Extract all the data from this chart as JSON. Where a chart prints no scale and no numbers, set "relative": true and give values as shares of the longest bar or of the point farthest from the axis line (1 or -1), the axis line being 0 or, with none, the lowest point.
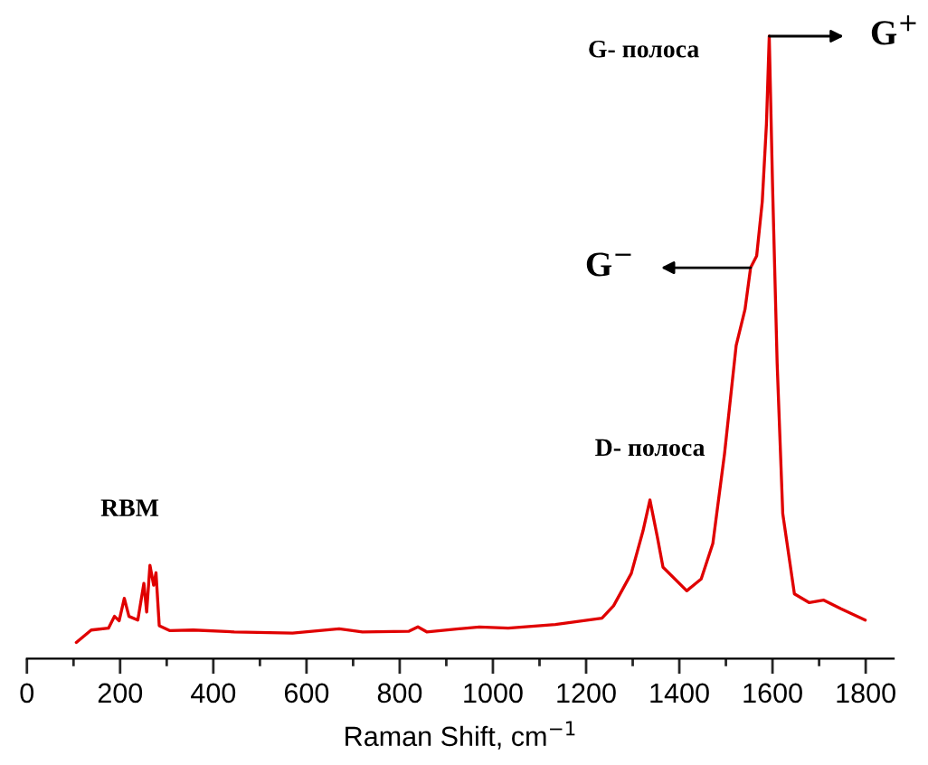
{
  "chart_data": {
    "type": "line",
    "relative": true,
    "xlabel": "Raman Shift, cm$^{−1}$",
    "xlim": [
      0,
      1860
    ],
    "xticks": [
      0,
      200,
      400,
      600,
      800,
      1000,
      1200,
      1400,
      1600,
      1800
    ],
    "grid": false,
    "legend": false,
    "tick_labels": "x",
    "series": [
      {
        "color": "#e00000",
        "x": [
          106,
          138,
          175,
          188,
          198,
          209,
          219,
          238,
          251,
          257,
          264,
          272,
          277,
          284,
          307,
          357,
          445,
          570,
          670,
          720,
          820,
          839,
          858,
          971,
          1033,
          1134,
          1234,
          1259,
          1297,
          1322,
          1337,
          1353,
          1365,
          1416,
          1447,
          1472,
          1497,
          1522,
          1541,
          1553,
          1566,
          1578,
          1587,
          1593,
          1600,
          1610,
          1622,
          1647,
          1679,
          1710,
          1747,
          1799
        ],
        "values": [
          0.026,
          0.046,
          0.049,
          0.068,
          0.061,
          0.097,
          0.068,
          0.062,
          0.121,
          0.075,
          0.15,
          0.118,
          0.138,
          0.053,
          0.045,
          0.046,
          0.043,
          0.041,
          0.048,
          0.043,
          0.044,
          0.051,
          0.043,
          0.051,
          0.049,
          0.055,
          0.065,
          0.085,
          0.137,
          0.205,
          0.255,
          0.195,
          0.147,
          0.109,
          0.128,
          0.185,
          0.329,
          0.503,
          0.561,
          0.628,
          0.647,
          0.734,
          0.859,
          1,
          0.763,
          0.474,
          0.233,
          0.104,
          0.09,
          0.094,
          0.08,
          0.062
        ]
      }
    ],
    "annotations": [
      {
        "text": "RBM",
        "x": 264,
        "y": 0.15
      },
      {
        "text": "D- полоса",
        "x": 1337,
        "y": 0.255
      },
      {
        "text": "G- полоса",
        "x": 1593,
        "y": 1
      },
      {
        "text": "G$^{+}$",
        "x": 1593,
        "y": 1
      },
      {
        "text": "G$^{−}$",
        "x": 1553,
        "y": 0.628
      }
    ]
  }
}
